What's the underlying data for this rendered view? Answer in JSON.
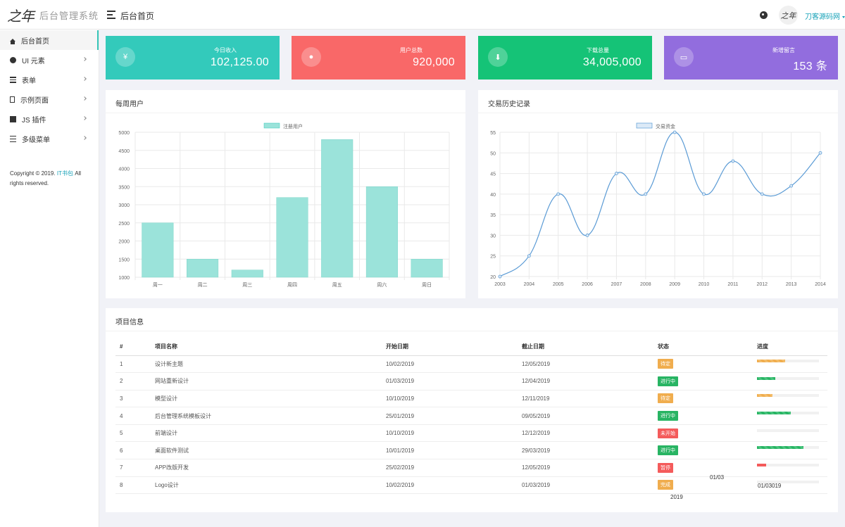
{
  "header": {
    "logo_text": "之年",
    "brand_title": "后台管理系统",
    "page_title": "后台首页",
    "avatar_text": "之年",
    "user_name": "刀客源码网"
  },
  "sidebar": {
    "items": [
      {
        "label": "后台首页",
        "icon": "home-icon",
        "active": true,
        "has_children": false
      },
      {
        "label": "UI 元素",
        "icon": "palette-icon",
        "active": false,
        "has_children": true
      },
      {
        "label": "表单",
        "icon": "table-icon",
        "active": false,
        "has_children": true
      },
      {
        "label": "示例页面",
        "icon": "file-icon",
        "active": false,
        "has_children": true
      },
      {
        "label": "JS 插件",
        "icon": "chart-icon",
        "active": false,
        "has_children": true
      },
      {
        "label": "多级菜单",
        "icon": "list-icon",
        "active": false,
        "has_children": true
      }
    ],
    "copyright_prefix": "Copyright © 2019.",
    "copyright_link": "IT书包",
    "copyright_suffix": "All rights reserved."
  },
  "stats": [
    {
      "label": "今日收入",
      "value": "102,125.00",
      "icon_glyph": "¥",
      "icon": "yen-icon",
      "color": "#33cabb"
    },
    {
      "label": "用户总数",
      "value": "920,000",
      "icon_glyph": "●",
      "icon": "user-icon",
      "color": "#f96868"
    },
    {
      "label": "下载总量",
      "value": "34,005,000",
      "icon_glyph": "⬇",
      "icon": "download-icon",
      "color": "#15c377"
    },
    {
      "label": "新增留言",
      "value": "153 条",
      "icon_glyph": "▭",
      "icon": "comment-icon",
      "color": "#926dde"
    }
  ],
  "panels": {
    "weekly_title": "每周用户",
    "history_title": "交易历史记录",
    "projects_title": "项目信息"
  },
  "chart_data": [
    {
      "type": "bar",
      "title": "每周用户",
      "categories": [
        "周一",
        "周二",
        "周三",
        "周四",
        "周五",
        "周六",
        "周日"
      ],
      "series": [
        {
          "name": "注册用户",
          "values": [
            2500,
            1500,
            1200,
            3200,
            4800,
            3500,
            1500
          ]
        }
      ],
      "ylim": [
        1000,
        5000
      ],
      "yticks": [
        1000,
        1500,
        2000,
        2500,
        3000,
        3500,
        4000,
        4500,
        5000
      ],
      "grid": true,
      "legend": "top-center",
      "color": "#33cabb"
    },
    {
      "type": "line",
      "title": "交易历史记录",
      "x": [
        "2003",
        "2004",
        "2005",
        "2006",
        "2007",
        "2008",
        "2009",
        "2010",
        "2011",
        "2012",
        "2013",
        "2014"
      ],
      "series": [
        {
          "name": "交易资金",
          "values": [
            20,
            25,
            40,
            30,
            45,
            40,
            55,
            40,
            48,
            40,
            42,
            50
          ]
        }
      ],
      "ylim": [
        20,
        55
      ],
      "yticks": [
        20,
        25,
        30,
        35,
        40,
        45,
        50,
        55
      ],
      "grid": true,
      "legend": "top-center",
      "color": "#5b9bd5"
    }
  ],
  "projects": {
    "headers": [
      "#",
      "项目名称",
      "开始日期",
      "截止日期",
      "状态",
      "进度"
    ],
    "rows": [
      {
        "id": "1",
        "name": "设计新主题",
        "start": "10/02/2019",
        "end": "12/05/2019",
        "status": "待定",
        "status_type": "warn",
        "progress": 45
      },
      {
        "id": "2",
        "name": "网站重新设计",
        "start": "01/03/2019",
        "end": "12/04/2019",
        "status": "进行中",
        "status_type": "success",
        "progress": 30
      },
      {
        "id": "3",
        "name": "模型设计",
        "start": "10/10/2019",
        "end": "12/11/2019",
        "status": "待定",
        "status_type": "warn",
        "progress": 25
      },
      {
        "id": "4",
        "name": "后台管理系统模板设计",
        "start": "25/01/2019",
        "end": "09/05/2019",
        "status": "进行中",
        "status_type": "success",
        "progress": 55
      },
      {
        "id": "5",
        "name": "前端设计",
        "start": "10/10/2019",
        "end": "12/12/2019",
        "status": "未开始",
        "status_type": "danger",
        "progress": 0
      },
      {
        "id": "6",
        "name": "桌面软件测试",
        "start": "10/01/2019",
        "end": "29/03/2019",
        "status": "进行中",
        "status_type": "success",
        "progress": 75
      },
      {
        "id": "7",
        "name": "APP改版开发",
        "start": "25/02/2019",
        "end": "12/05/2019",
        "status": "暂停",
        "status_type": "danger",
        "progress": 15
      },
      {
        "id": "8",
        "name": "Logo设计",
        "start": "10/02/2019",
        "end": "01/03/2019",
        "status": "完成",
        "status_type": "warn",
        "progress": 0
      }
    ]
  },
  "overlay_fragments": [
    "01/03",
    "01/03019",
    "2019"
  ]
}
